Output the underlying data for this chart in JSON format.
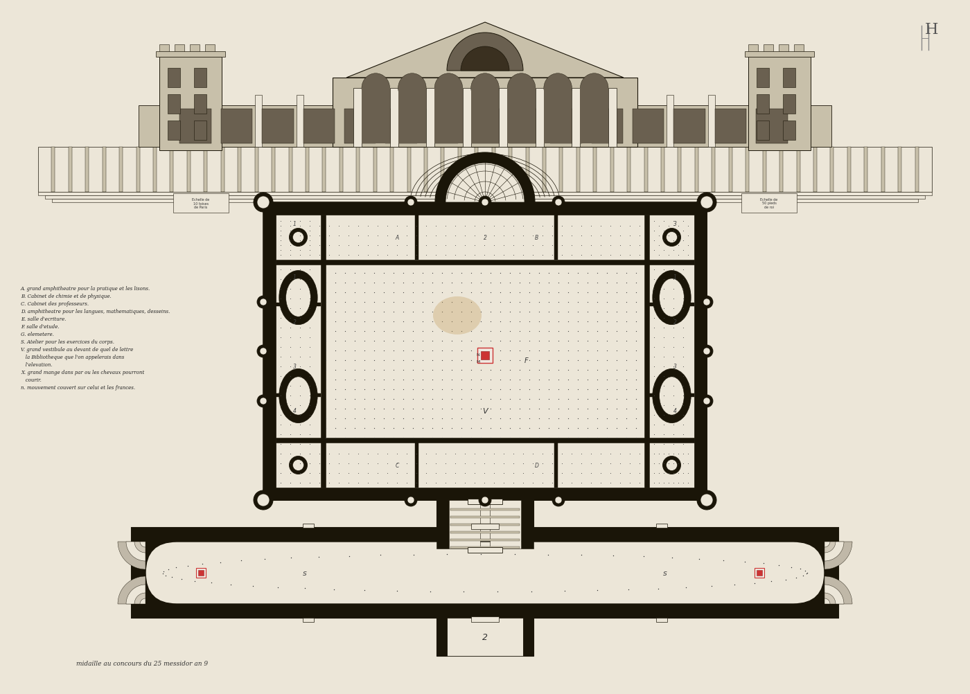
{
  "paper_color": "#ece6d8",
  "line_color": "#1a1508",
  "dark_fill": "#1a1508",
  "wall_gray": "#c8c0aa",
  "light_fill": "#ece6d8",
  "mid_gray": "#9a9080",
  "dark_gray": "#6a6050",
  "red_mark": "#cc3333",
  "stain_color": "#c8a070",
  "bottom_text": "midaille au concours du 25 messidor an 9",
  "legend_lines": [
    "A. grand amphitheatre pour la pratique et les lisons.",
    "B. Cabinet de chimie et de physique.",
    "C. Cabinet des professeurs.",
    "D. amphitheatre pour les langues, mathematiques, desseins.",
    "E. salle d'ecriture.",
    "F. salle d'etude.",
    "G. elemetere.",
    "S. Atelier pour les exercices du corps.",
    "V. grand vestibule au devant de quel de lettre",
    "   la Bibliotheque que l'on appelerais dans",
    "   l'elevation.",
    "X. grand mange dans par ou les chevaux pourront",
    "   courir.",
    "n. mouvement couvert sur celui et les frances."
  ]
}
